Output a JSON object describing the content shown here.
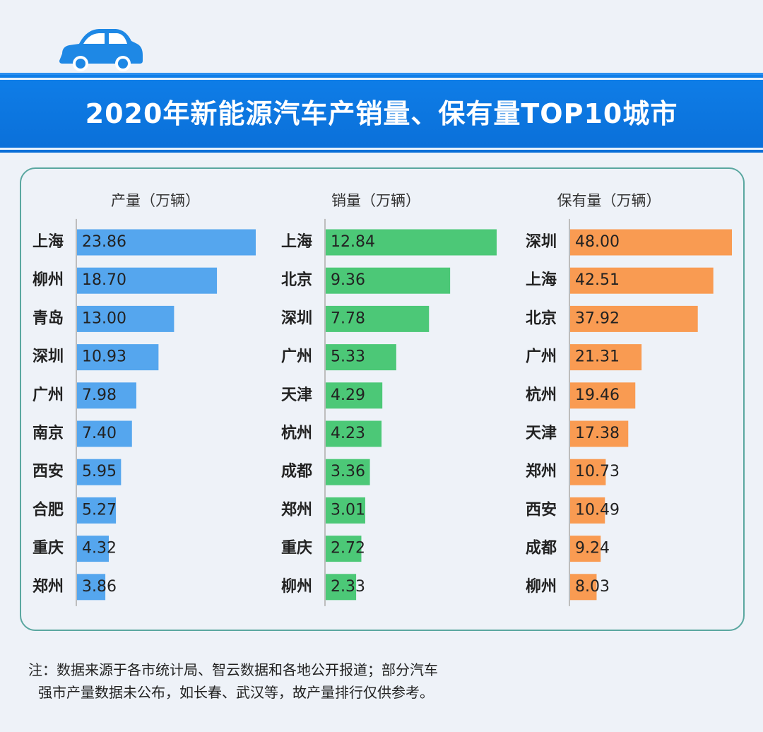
{
  "title": "2020年新能源汽车产销量、保有量TOP10城市",
  "colors": {
    "title_band": "#0a6fd8",
    "production": "#55a6ee",
    "sales": "#4cc877",
    "ownership": "#f99b52",
    "panel_border": "#5aa7a0",
    "background": "#eef2f8"
  },
  "chart_data": [
    {
      "type": "bar",
      "orientation": "horizontal",
      "title": "产量（万辆）",
      "categories": [
        "上海",
        "柳州",
        "青岛",
        "深圳",
        "广州",
        "南京",
        "西安",
        "合肥",
        "重庆",
        "郑州"
      ],
      "values": [
        23.86,
        18.7,
        13.0,
        10.93,
        7.98,
        7.4,
        5.95,
        5.27,
        4.32,
        3.86
      ],
      "labels": [
        "23.86",
        "18.70",
        "13.00",
        "10.93",
        "7.98",
        "7.40",
        "5.95",
        "5.27",
        "4.32",
        "3.86"
      ],
      "color_key": "production"
    },
    {
      "type": "bar",
      "orientation": "horizontal",
      "title": "销量（万辆）",
      "categories": [
        "上海",
        "北京",
        "深圳",
        "广州",
        "天津",
        "杭州",
        "成都",
        "郑州",
        "重庆",
        "柳州"
      ],
      "values": [
        12.84,
        9.36,
        7.78,
        5.33,
        4.29,
        4.23,
        3.36,
        3.01,
        2.72,
        2.33
      ],
      "labels": [
        "12.84",
        "9.36",
        "7.78",
        "5.33",
        "4.29",
        "4.23",
        "3.36",
        "3.01",
        "2.72",
        "2.33"
      ],
      "color_key": "sales"
    },
    {
      "type": "bar",
      "orientation": "horizontal",
      "title": "保有量（万辆）",
      "categories": [
        "深圳",
        "上海",
        "北京",
        "广州",
        "杭州",
        "天津",
        "郑州",
        "西安",
        "成都",
        "柳州"
      ],
      "values": [
        48.0,
        42.51,
        37.92,
        21.31,
        19.46,
        17.38,
        10.73,
        10.49,
        9.24,
        8.03
      ],
      "labels": [
        "48.00",
        "42.51",
        "37.92",
        "21.31",
        "19.46",
        "17.38",
        "10.73",
        "10.49",
        "9.24",
        "8.03"
      ],
      "color_key": "ownership"
    }
  ],
  "note": {
    "line1": "注：数据来源于各市统计局、智云数据和各地公开报道；部分汽车",
    "line2": "强市产量数据未公布，如长春、武汉等，故产量排行仅供参考。"
  }
}
